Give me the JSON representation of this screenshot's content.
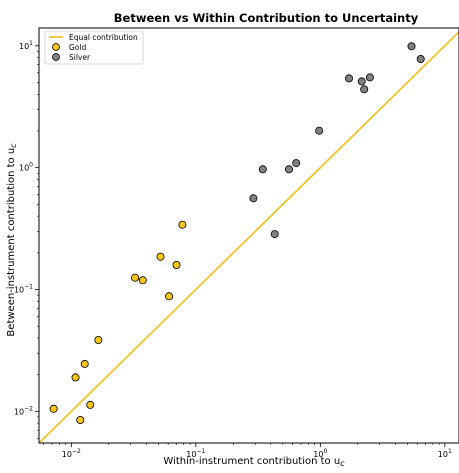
{
  "chart_data": {
    "type": "scatter",
    "title": "Between vs Within Contribution to Uncertainty",
    "xlabel": "Within-instrument contribution to u",
    "xlabel_sub": "c",
    "ylabel": "Between-instrument contribution to u",
    "ylabel_sub": "c",
    "x_scale": "log",
    "y_scale": "log",
    "xlim": [
      0.0055,
      13
    ],
    "ylim": [
      0.0055,
      14
    ],
    "x_ticks": [
      {
        "value": 0.01,
        "base": "10",
        "exp": "−2"
      },
      {
        "value": 0.1,
        "base": "10",
        "exp": "−1"
      },
      {
        "value": 1,
        "base": "10",
        "exp": "0"
      },
      {
        "value": 10,
        "base": "10",
        "exp": "1"
      }
    ],
    "y_ticks": [
      {
        "value": 0.01,
        "base": "10",
        "exp": "−2"
      },
      {
        "value": 0.1,
        "base": "10",
        "exp": "−1"
      },
      {
        "value": 1,
        "base": "10",
        "exp": "0"
      },
      {
        "value": 10,
        "base": "10",
        "exp": "1"
      }
    ],
    "grid": false,
    "legend_position": "top-left",
    "reference_line": {
      "name": "Equal contribution",
      "color": "#f2c42c"
    },
    "series": [
      {
        "name": "Gold",
        "color": "#f5c518",
        "edge": "#000000",
        "points": [
          [
            0.0072,
            0.0105
          ],
          [
            0.0108,
            0.019
          ],
          [
            0.0118,
            0.0085
          ],
          [
            0.0128,
            0.0245
          ],
          [
            0.0142,
            0.0113
          ],
          [
            0.0165,
            0.0385
          ],
          [
            0.0325,
            0.125
          ],
          [
            0.0375,
            0.119
          ],
          [
            0.052,
            0.186
          ],
          [
            0.061,
            0.088
          ],
          [
            0.07,
            0.159
          ],
          [
            0.078,
            0.34
          ]
        ]
      },
      {
        "name": "Silver",
        "color": "#808080",
        "edge": "#000000",
        "points": [
          [
            0.29,
            0.56
          ],
          [
            0.345,
            0.97
          ],
          [
            0.43,
            0.285
          ],
          [
            0.56,
            0.97
          ],
          [
            0.64,
            1.09
          ],
          [
            0.98,
            2.01
          ],
          [
            1.7,
            5.4
          ],
          [
            2.15,
            5.1
          ],
          [
            2.25,
            4.4
          ],
          [
            2.5,
            5.5
          ],
          [
            5.4,
            9.9
          ],
          [
            6.4,
            7.8
          ]
        ]
      }
    ]
  }
}
